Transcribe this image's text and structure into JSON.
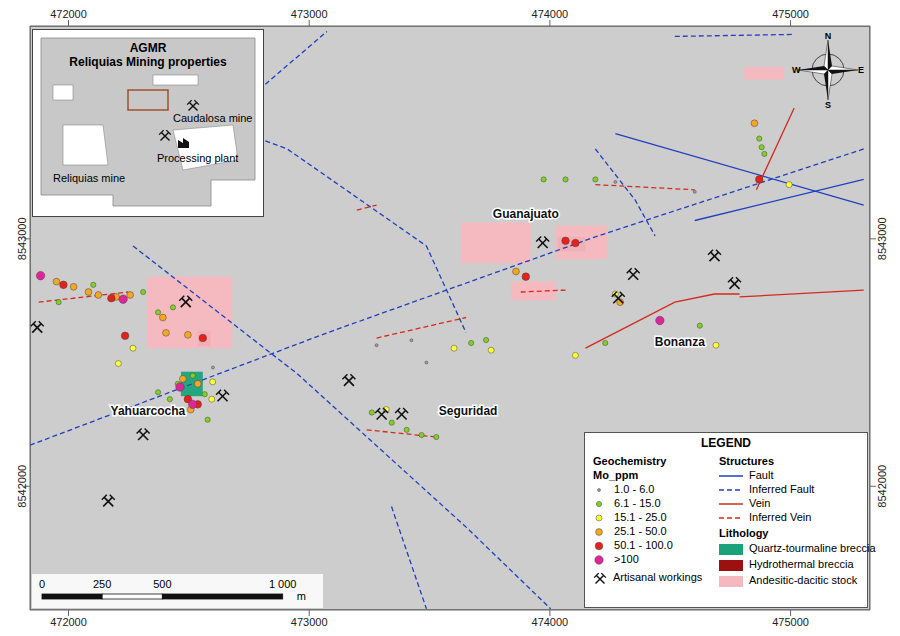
{
  "chart_data": {
    "type": "scatter",
    "xlim": [
      471840,
      475330
    ],
    "ylim": [
      8541500,
      8543860
    ],
    "xticks": [
      472000,
      473000,
      474000,
      475000
    ],
    "yticks": [
      8542000,
      8543000
    ],
    "grid": false,
    "legend": "bottom right",
    "legend_title": "LEGEND",
    "legend_headings": [
      "Geochemistry",
      "Mo_ppm",
      "Structures",
      "Lithology"
    ],
    "series": [
      {
        "name": "1.0 - 6.0",
        "color": "#9e9e9e",
        "x": [
          473280,
          473425,
          474272,
          474602,
          473487,
          472600
        ],
        "y": [
          8542570,
          8542590,
          8543230,
          8543190,
          8542500,
          8542480
        ]
      },
      {
        "name": "6.1 - 15.0",
        "color": "#7ed321",
        "x": [
          471959,
          472103,
          472310,
          472372,
          472434,
          472454,
          472516,
          472566,
          472578,
          472421,
          472372,
          473260,
          473343,
          473405,
          473467,
          473528,
          473673,
          473735,
          474065,
          473974,
          474189,
          474230,
          474623,
          474870,
          474891,
          474880
        ],
        "y": [
          8542744,
          8542814,
          8542785,
          8542703,
          8542723,
          8542414,
          8542447,
          8542372,
          8542269,
          8542352,
          8542380,
          8542298,
          8542257,
          8542228,
          8542207,
          8542199,
          8542579,
          8542591,
          8543240,
          8543240,
          8543240,
          8542579,
          8542649,
          8543405,
          8543343,
          8543370
        ]
      },
      {
        "name": "15.1 - 25.0",
        "color": "#ffff33",
        "x": [
          472268,
          472207,
          472595,
          472599,
          473320,
          473756,
          474272,
          474690,
          474106,
          474994,
          473602
        ],
        "y": [
          8542558,
          8542496,
          8542352,
          8542422,
          8542310,
          8542550,
          8542777,
          8542570,
          8542529,
          8543219,
          8542558
        ]
      },
      {
        "name": "25.1 - 50.0",
        "color": "#f5a623",
        "x": [
          471950,
          472021,
          472083,
          472124,
          472198,
          472256,
          472392,
          472405,
          472496,
          472475,
          472537,
          472508,
          473859,
          474292,
          474850
        ],
        "y": [
          8542827,
          8542806,
          8542785,
          8542773,
          8542765,
          8542773,
          8542682,
          8542620,
          8542612,
          8542434,
          8542414,
          8542310,
          8542868,
          8542744,
          8543467
        ]
      },
      {
        "name": "50.1 - 100.0",
        "color": "#e8201c",
        "x": [
          471979,
          472178,
          472235,
          472558,
          472496,
          472537,
          474065,
          474106,
          473900,
          474870
        ],
        "y": [
          8542814,
          8542760,
          8542608,
          8542599,
          8542352,
          8542331,
          8542992,
          8542983,
          8542847,
          8543240
        ]
      },
      {
        "name": ">100",
        "color": "#e0249a",
        "x": [
          471884,
          472227,
          472516,
          472463,
          474457
        ],
        "y": [
          8542851,
          8542756,
          8542331,
          8542401,
          8542670
        ]
      }
    ],
    "workings": {
      "name": "Artisanal workings",
      "x": [
        471870,
        472310,
        472165,
        472487,
        472640,
        473165,
        473301,
        473384,
        473970,
        474346,
        474284,
        474684,
        474767
      ],
      "y": [
        8542641,
        8542207,
        8541939,
        8542744,
        8542364,
        8542426,
        8542290,
        8542290,
        8542983,
        8542855,
        8542760,
        8542930,
        8542818
      ]
    },
    "structures": [
      {
        "name": "Fault",
        "color": "#1f3fbf",
        "line_style": "solid",
        "lines": [
          {
            "x": [
              474272,
              475304
            ],
            "y": [
              8543425,
              8543136
            ]
          },
          {
            "x": [
              474602,
              475304
            ],
            "y": [
              8543074,
              8543240
            ]
          }
        ]
      },
      {
        "name": "Inferred Fault",
        "color": "#1f3fbf",
        "line_style": "dashed",
        "lines": [
          {
            "x": [
              471840,
              473074,
              474189,
              475304
            ],
            "y": [
              8542166,
              8542620,
              8543008,
              8543363
            ]
          },
          {
            "x": [
              472818,
              472909,
              473487,
              473652
            ],
            "y": [
              8543396,
              8543363,
              8542971,
              8542620
            ]
          },
          {
            "x": [
              472268,
              472950,
              473652,
              474003
            ],
            "y": [
              8542971,
              8542455,
              8541835,
              8541505
            ]
          },
          {
            "x": [
              472818,
              473074
            ],
            "y": [
              8543625,
              8543838
            ]
          },
          {
            "x": [
              474519,
              475015
            ],
            "y": [
              8543818,
              8543826
            ]
          },
          {
            "x": [
              473342,
              473487
            ],
            "y": [
              8541918,
              8541505
            ]
          },
          {
            "x": [
              474189,
              474354,
              474437
            ],
            "y": [
              8543363,
              8543157,
              8543012
            ]
          }
        ]
      },
      {
        "name": "Vein",
        "color": "#d42a1e",
        "line_style": "solid",
        "lines": [
          {
            "x": [
              474148,
              474354,
              474519,
              474684,
              474788
            ],
            "y": [
              8542558,
              8542661,
              8542744,
              8542777,
              8542777
            ]
          },
          {
            "x": [
              474788,
              475304
            ],
            "y": [
              8542765,
              8542793
            ]
          },
          {
            "x": [
              474858,
              475015
            ],
            "y": [
              8543198,
              8543529
            ]
          }
        ]
      },
      {
        "name": "Inferred Vein",
        "color": "#d42a1e",
        "line_style": "dashed",
        "lines": [
          {
            "x": [
              473879,
              474065
            ],
            "y": [
              8542785,
              8542793
            ]
          },
          {
            "x": [
              474189,
              474602
            ],
            "y": [
              8543219,
              8543198
            ]
          },
          {
            "x": [
              473239,
              473528
            ],
            "y": [
              8542228,
              8542199
            ]
          },
          {
            "x": [
              473280,
              473652
            ],
            "y": [
              8542599,
              8542682
            ]
          },
          {
            "x": [
              471876,
              472248
            ],
            "y": [
              8542744,
              8542785
            ]
          },
          {
            "x": [
              473198,
              473280
            ],
            "y": [
              8543116,
              8543136
            ]
          }
        ]
      }
    ],
    "lithology": [
      {
        "name": "Quartz-tourmaline breccia",
        "color": "#1aa37a",
        "areas": [
          {
            "x": [
              472467,
              472558
            ],
            "y": [
              8542364,
              8542463
            ]
          }
        ]
      },
      {
        "name": "Hydrothermal breccia",
        "color": "#9b1111",
        "areas": [
          {
            "x": [
              474032,
              474148
            ],
            "y": [
              8542950,
              8543008
            ]
          },
          {
            "x": [
              472537,
              472591
            ],
            "y": [
              8542566,
              8542628
            ]
          }
        ]
      },
      {
        "name": "Andesitic-dacitic stock",
        "color": "#f6b8bf",
        "areas": [
          {
            "x": [
              473631,
              473920
            ],
            "y": [
              8542901,
              8543066
            ]
          },
          {
            "x": [
              473838,
              474024
            ],
            "y": [
              8542752,
              8542827
            ]
          },
          {
            "x": [
              474024,
              474238
            ],
            "y": [
              8542917,
              8543054
            ]
          },
          {
            "x": [
              472330,
              472681
            ],
            "y": [
              8542558,
              8542847
            ]
          },
          {
            "x": [
              474808,
              474974
            ],
            "y": [
              8543644,
              8543694
            ]
          }
        ]
      }
    ],
    "places": [
      {
        "name": "Yahuarcocha",
        "x": 472330,
        "y": 8542290
      },
      {
        "name": "Seguridad",
        "x": 473660,
        "y": 8542290
      },
      {
        "name": "Guanajuato",
        "x": 473900,
        "y": 8543083
      },
      {
        "name": "Bonanza",
        "x": 474540,
        "y": 8542566
      }
    ],
    "inset": {
      "title": "AGMR",
      "subtitle": "Reliquias Mining properties",
      "labels": [
        "Caudalosa mine",
        "Reliquias mine",
        "Processing plant"
      ]
    },
    "compass": [
      "N",
      "E",
      "S",
      "W"
    ],
    "scale_bar": {
      "ticks": [
        0,
        250,
        500,
        {
          "value": 1000,
          "label": "1 000"
        }
      ],
      "unit": "m"
    }
  }
}
